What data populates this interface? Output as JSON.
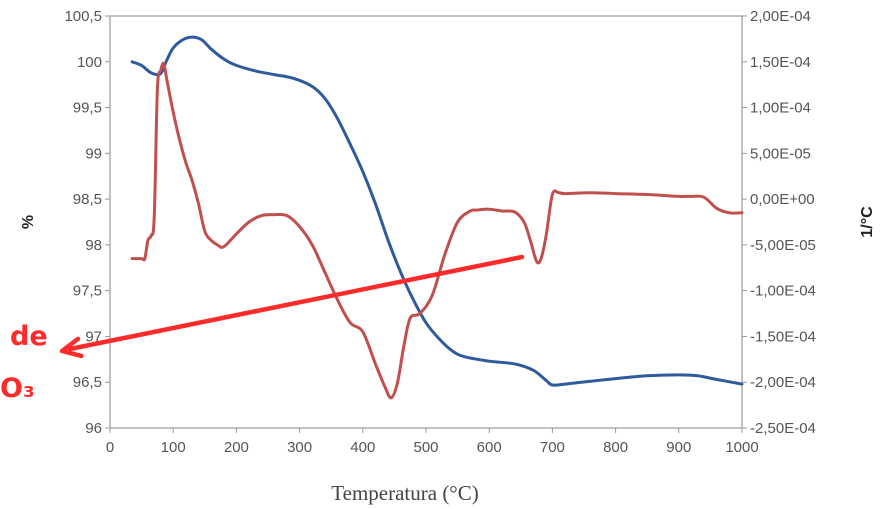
{
  "chart_data": {
    "type": "line",
    "xlabel": "Temperatura (°C)",
    "ylabel_left": "%",
    "ylabel_right": "1/°C",
    "xlim": [
      0,
      1000
    ],
    "ylim_left": [
      96,
      100.5
    ],
    "ylim_right": [
      -0.00025,
      0.0002
    ],
    "x_ticks": [
      "0",
      "100",
      "200",
      "300",
      "400",
      "500",
      "600",
      "700",
      "800",
      "900",
      "1000"
    ],
    "y_left_ticks": [
      "96",
      "96,5",
      "97",
      "97,5",
      "98",
      "98,5",
      "99",
      "99,5",
      "100",
      "100,5"
    ],
    "y_right_ticks": [
      "-2,50E-04",
      "-2,00E-04",
      "-1,50E-04",
      "-1,00E-04",
      "-5,00E-05",
      "0,00E+00",
      "5,00E-05",
      "1,00E-04",
      "1,50E-04",
      "2,00E-04"
    ],
    "grid": false,
    "series": [
      {
        "axis": "left",
        "color": "#2f5a9c",
        "x": [
          35,
          50,
          65,
          80,
          90,
          100,
          115,
          130,
          145,
          160,
          180,
          200,
          230,
          260,
          290,
          320,
          340,
          360,
          380,
          400,
          420,
          440,
          460,
          480,
          500,
          520,
          540,
          560,
          600,
          640,
          670,
          690,
          700,
          720,
          760,
          800,
          850,
          900,
          930,
          960,
          1000
        ],
        "y": [
          100.0,
          99.96,
          99.88,
          99.87,
          100.02,
          100.15,
          100.24,
          100.27,
          100.24,
          100.14,
          100.03,
          99.96,
          99.9,
          99.86,
          99.82,
          99.73,
          99.6,
          99.38,
          99.1,
          98.8,
          98.45,
          98.05,
          97.7,
          97.4,
          97.15,
          96.98,
          96.85,
          96.78,
          96.73,
          96.7,
          96.63,
          96.52,
          96.47,
          96.48,
          96.51,
          96.54,
          96.57,
          96.58,
          96.57,
          96.53,
          96.48
        ]
      },
      {
        "axis": "right",
        "color": "#c0504d",
        "x": [
          35,
          50,
          55,
          60,
          65,
          70,
          75,
          80,
          85,
          90,
          100,
          110,
          120,
          130,
          140,
          150,
          160,
          170,
          180,
          200,
          220,
          240,
          260,
          280,
          300,
          320,
          340,
          360,
          380,
          400,
          420,
          435,
          445,
          455,
          465,
          475,
          490,
          510,
          530,
          550,
          570,
          580,
          600,
          620,
          640,
          655,
          665,
          675,
          682,
          690,
          700,
          710,
          720,
          760,
          800,
          850,
          900,
          920,
          940,
          960,
          980,
          1000
        ],
        "y": [
          -6.5e-05,
          -6.5e-05,
          -6.5e-05,
          -4.5e-05,
          -4e-05,
          -2e-05,
          0.00012,
          0.00014,
          0.000148,
          0.00013,
          9.5e-05,
          6.5e-05,
          4e-05,
          2e-05,
          -5e-06,
          -3.5e-05,
          -4.5e-05,
          -5e-05,
          -5.2e-05,
          -3.8e-05,
          -2.5e-05,
          -1.8e-05,
          -1.7e-05,
          -1.8e-05,
          -3e-05,
          -5e-05,
          -8e-05,
          -0.00011,
          -0.000135,
          -0.000145,
          -0.00018,
          -0.000205,
          -0.000217,
          -0.0002,
          -0.00016,
          -0.00013,
          -0.000125,
          -0.000105,
          -6e-05,
          -2.5e-05,
          -1.3e-05,
          -1.2e-05,
          -1.1e-05,
          -1.3e-05,
          -1.4e-05,
          -2.5e-05,
          -4.5e-05,
          -6.8e-05,
          -6.5e-05,
          -4e-05,
          5e-06,
          7e-06,
          6e-06,
          7e-06,
          6e-06,
          5e-06,
          3e-06,
          3e-06,
          2e-06,
          -1e-05,
          -1.5e-05,
          -1.5e-05
        ]
      }
    ]
  },
  "annotation": {
    "color": "#ff2a2a",
    "text_line1": "de",
    "text_line2": "O₃"
  }
}
